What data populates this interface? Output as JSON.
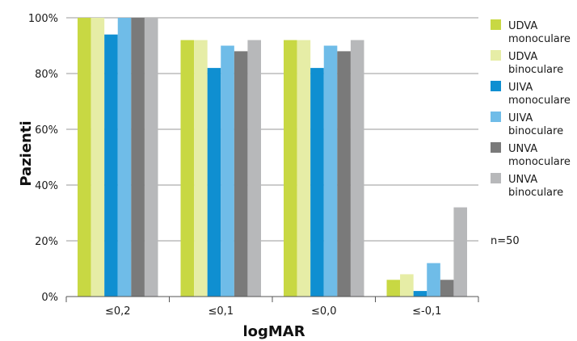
{
  "chart_data": {
    "type": "bar",
    "xlabel": "logMAR",
    "ylabel": "Pazienti",
    "categories": [
      "≤0,2",
      "≤0,1",
      "≤0,0",
      "≤-0,1"
    ],
    "y_ticks": [
      "0%",
      "20%",
      "40%",
      "60%",
      "80%",
      "100%"
    ],
    "ylim": [
      0,
      100
    ],
    "grid": true,
    "legend_position": "right",
    "note": "n=50",
    "series": [
      {
        "name": "UDVA\nmonoculare",
        "color": "#c8d843",
        "values": [
          100,
          92,
          92,
          6
        ]
      },
      {
        "name": "UDVA\nbinoculare",
        "color": "#e6eda6",
        "values": [
          100,
          92,
          92,
          8
        ]
      },
      {
        "name": "UIVA\nmonoculare",
        "color": "#0f8fd1",
        "values": [
          94,
          82,
          82,
          2
        ]
      },
      {
        "name": "UIVA\nbinoculare",
        "color": "#6fbce8",
        "values": [
          100,
          90,
          90,
          12
        ]
      },
      {
        "name": "UNVA\nmonoculare",
        "color": "#7a7a7a",
        "values": [
          100,
          88,
          88,
          6
        ]
      },
      {
        "name": "UNVA\nbinoculare",
        "color": "#b7b8ba",
        "values": [
          100,
          92,
          92,
          32
        ]
      }
    ]
  }
}
